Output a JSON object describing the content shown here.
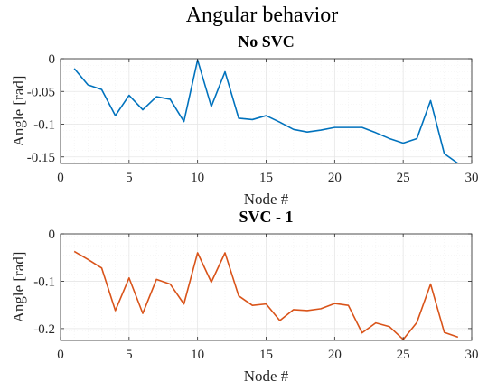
{
  "figure": {
    "title": "Angular behavior"
  },
  "colors": {
    "series1": "#0072BD",
    "series2": "#D95319",
    "grid": "#e6e6e6",
    "minor_grid": "#f1f1f1",
    "axes": "#262626"
  },
  "chart_data": [
    {
      "type": "line",
      "title": "No SVC",
      "xlabel": "Node #",
      "ylabel": "Angle  [rad]",
      "xlim": [
        0,
        30
      ],
      "ylim": [
        -0.16,
        0
      ],
      "xticks": [
        0,
        5,
        10,
        15,
        20,
        25,
        30
      ],
      "yticks": [
        0,
        -0.05,
        -0.1,
        -0.15
      ],
      "ytick_labels": [
        "0",
        "-0.05",
        "-0.1",
        "-0.15"
      ],
      "grid": true,
      "minor_grid": true,
      "x": [
        1,
        2,
        3,
        4,
        5,
        6,
        7,
        8,
        9,
        10,
        11,
        12,
        13,
        14,
        15,
        16,
        17,
        18,
        19,
        20,
        21,
        22,
        23,
        24,
        25,
        26,
        27,
        28,
        29
      ],
      "series": [
        {
          "color": "#0072BD",
          "values": [
            -0.015,
            -0.04,
            -0.047,
            -0.087,
            -0.056,
            -0.078,
            -0.058,
            -0.062,
            -0.096,
            -0.002,
            -0.073,
            -0.02,
            -0.091,
            -0.093,
            -0.087,
            -0.097,
            -0.108,
            -0.112,
            -0.109,
            -0.105,
            -0.105,
            -0.105,
            -0.113,
            -0.122,
            -0.129,
            -0.122,
            -0.064,
            -0.145,
            -0.16
          ]
        }
      ]
    },
    {
      "type": "line",
      "title": "SVC - 1",
      "xlabel": "Node #",
      "ylabel": "Angle  [rad]",
      "xlim": [
        0,
        30
      ],
      "ylim": [
        -0.225,
        0
      ],
      "xticks": [
        0,
        5,
        10,
        15,
        20,
        25,
        30
      ],
      "yticks": [
        0,
        -0.1,
        -0.2
      ],
      "ytick_labels": [
        "0",
        "-0.1",
        "-0.2"
      ],
      "grid": true,
      "minor_grid": true,
      "x": [
        1,
        2,
        3,
        4,
        5,
        6,
        7,
        8,
        9,
        10,
        11,
        12,
        13,
        14,
        15,
        16,
        17,
        18,
        19,
        20,
        21,
        22,
        23,
        24,
        25,
        26,
        27,
        28,
        29
      ],
      "series": [
        {
          "color": "#D95319",
          "values": [
            -0.037,
            -0.054,
            -0.072,
            -0.162,
            -0.093,
            -0.168,
            -0.096,
            -0.106,
            -0.148,
            -0.04,
            -0.102,
            -0.04,
            -0.131,
            -0.151,
            -0.148,
            -0.183,
            -0.16,
            -0.162,
            -0.158,
            -0.147,
            -0.151,
            -0.209,
            -0.188,
            -0.196,
            -0.223,
            -0.187,
            -0.106,
            -0.208,
            -0.218
          ]
        }
      ]
    }
  ]
}
